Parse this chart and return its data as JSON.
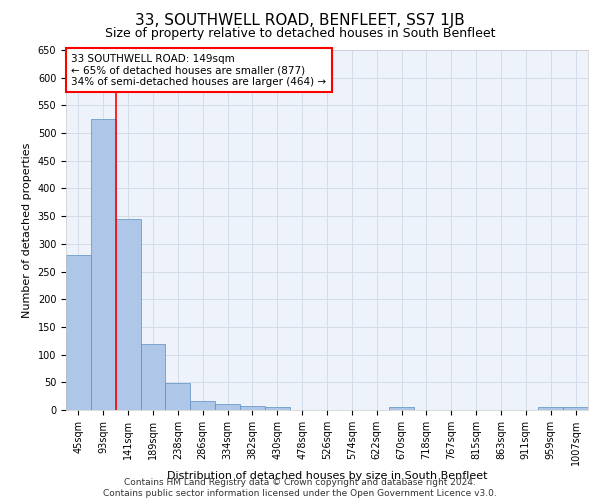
{
  "title": "33, SOUTHWELL ROAD, BENFLEET, SS7 1JB",
  "subtitle": "Size of property relative to detached houses in South Benfleet",
  "xlabel": "Distribution of detached houses by size in South Benfleet",
  "ylabel": "Number of detached properties",
  "footer_line1": "Contains HM Land Registry data © Crown copyright and database right 2024.",
  "footer_line2": "Contains public sector information licensed under the Open Government Licence v3.0.",
  "categories": [
    "45sqm",
    "93sqm",
    "141sqm",
    "189sqm",
    "238sqm",
    "286sqm",
    "334sqm",
    "382sqm",
    "430sqm",
    "478sqm",
    "526sqm",
    "574sqm",
    "622sqm",
    "670sqm",
    "718sqm",
    "767sqm",
    "815sqm",
    "863sqm",
    "911sqm",
    "959sqm",
    "1007sqm"
  ],
  "values": [
    280,
    525,
    345,
    120,
    48,
    16,
    10,
    8,
    5,
    0,
    0,
    0,
    0,
    5,
    0,
    0,
    0,
    0,
    0,
    5,
    5
  ],
  "bar_color": "#aec6e8",
  "bar_edge_color": "#5a8fc0",
  "red_line_index": 2,
  "annotation_title": "33 SOUTHWELL ROAD: 149sqm",
  "annotation_line2": "← 65% of detached houses are smaller (877)",
  "annotation_line3": "34% of semi-detached houses are larger (464) →",
  "ylim": [
    0,
    650
  ],
  "yticks": [
    0,
    50,
    100,
    150,
    200,
    250,
    300,
    350,
    400,
    450,
    500,
    550,
    600,
    650
  ],
  "grid_color": "#d0d8e8",
  "background_color": "#eef2fa",
  "title_fontsize": 11,
  "subtitle_fontsize": 9,
  "axis_label_fontsize": 8,
  "tick_fontsize": 7,
  "annotation_fontsize": 7.5,
  "footer_fontsize": 6.5
}
